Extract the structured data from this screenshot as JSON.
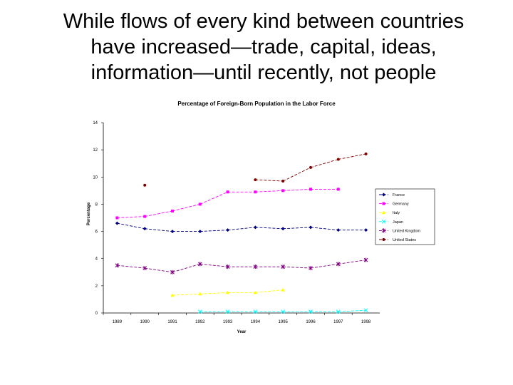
{
  "slide": {
    "title_lines": [
      "While flows of every kind between countries",
      "have increased—trade, capital, ideas,",
      "information—until recently, not people"
    ]
  },
  "chart_data": {
    "type": "line",
    "title": "Percentage of Foreign-Born Population in the Labor Force",
    "xlabel": "Year",
    "ylabel": "Percentage",
    "categories": [
      "1989",
      "1990",
      "1991",
      "1992",
      "1993",
      "1994",
      "1995",
      "1996",
      "1997",
      "1998"
    ],
    "ylim": [
      0,
      14
    ],
    "yticks": [
      0,
      2,
      4,
      6,
      8,
      10,
      12,
      14
    ],
    "grid": false,
    "legend_position": "right",
    "series": [
      {
        "name": "France",
        "color": "#000080",
        "marker": "diamond",
        "values": [
          6.6,
          6.2,
          6.0,
          6.0,
          6.1,
          6.3,
          6.2,
          6.3,
          6.1,
          6.1
        ]
      },
      {
        "name": "Germany",
        "color": "#ff00ff",
        "marker": "square",
        "values": [
          7.0,
          7.1,
          7.5,
          8.0,
          8.9,
          8.9,
          9.0,
          9.1,
          9.1,
          null
        ]
      },
      {
        "name": "Italy",
        "color": "#ffff00",
        "marker": "triangle",
        "values": [
          null,
          null,
          1.3,
          1.4,
          1.5,
          1.5,
          1.7,
          null,
          null,
          null
        ]
      },
      {
        "name": "Japan",
        "color": "#00ffff",
        "marker": "x",
        "values": [
          null,
          null,
          null,
          0.1,
          0.1,
          0.1,
          0.1,
          0.1,
          0.1,
          0.2
        ]
      },
      {
        "name": "United Kingdom",
        "color": "#800080",
        "marker": "star",
        "values": [
          3.5,
          3.3,
          3.0,
          3.6,
          3.4,
          3.4,
          3.4,
          3.3,
          3.6,
          3.9
        ]
      },
      {
        "name": "United States",
        "color": "#800000",
        "marker": "circle",
        "values": [
          null,
          9.4,
          null,
          null,
          null,
          9.8,
          9.7,
          10.7,
          11.3,
          11.7
        ]
      }
    ]
  }
}
